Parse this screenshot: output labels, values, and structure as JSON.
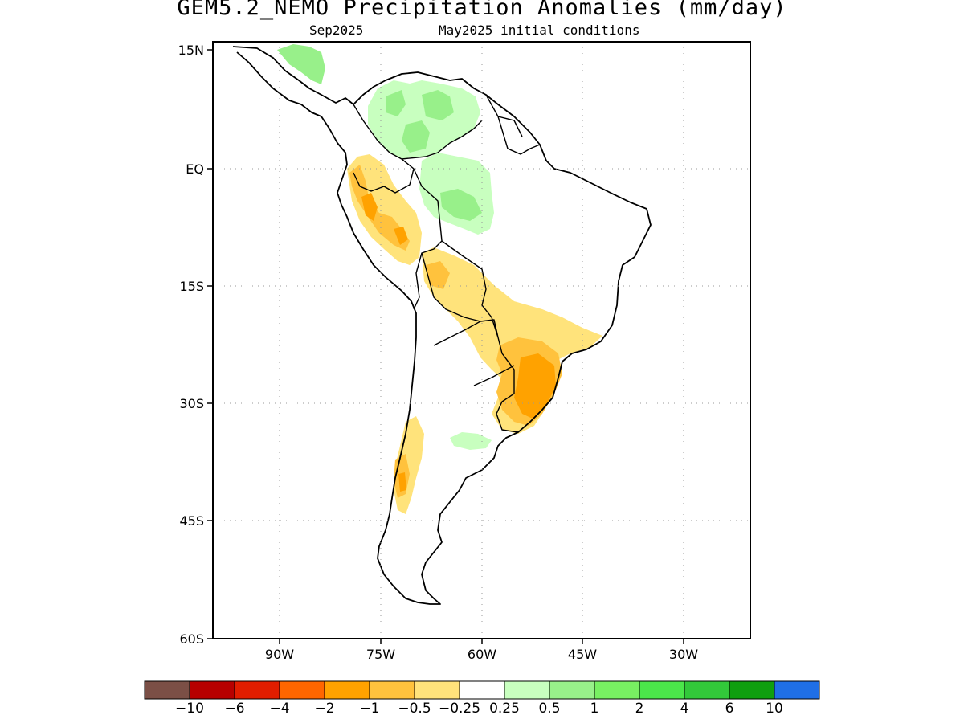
{
  "title": "GEM5.2_NEMO Precipitation Anomalies (mm/day)",
  "subtitle_left": "Sep2025",
  "subtitle_right": "May2025 initial conditions",
  "lat_labels": [
    "15N",
    "EQ",
    "15S",
    "30S",
    "45S",
    "60S"
  ],
  "lon_labels": [
    "90W",
    "75W",
    "60W",
    "45W",
    "30W"
  ],
  "colorbar": {
    "colors": [
      "#7b4f46",
      "#b70000",
      "#e11d00",
      "#ff6600",
      "#ffa200",
      "#ffc23d",
      "#ffe37b",
      "#ffffff",
      "#c8ffbf",
      "#98f08a",
      "#78f062",
      "#4be64a",
      "#32c83a",
      "#109f10",
      "#1f6fe6"
    ],
    "labels": [
      "−10",
      "−6",
      "−4",
      "−2",
      "−1",
      "−0.5",
      "−0.25",
      "0.25",
      "0.5",
      "1",
      "2",
      "4",
      "6",
      "10"
    ]
  },
  "legend_colors": {
    "light_yellow": "#ffe37b",
    "yellow_orange": "#ffc23d",
    "orange": "#ffa200",
    "light_green": "#c8ffbf",
    "green": "#98f08a",
    "med_green": "#78f062"
  }
}
